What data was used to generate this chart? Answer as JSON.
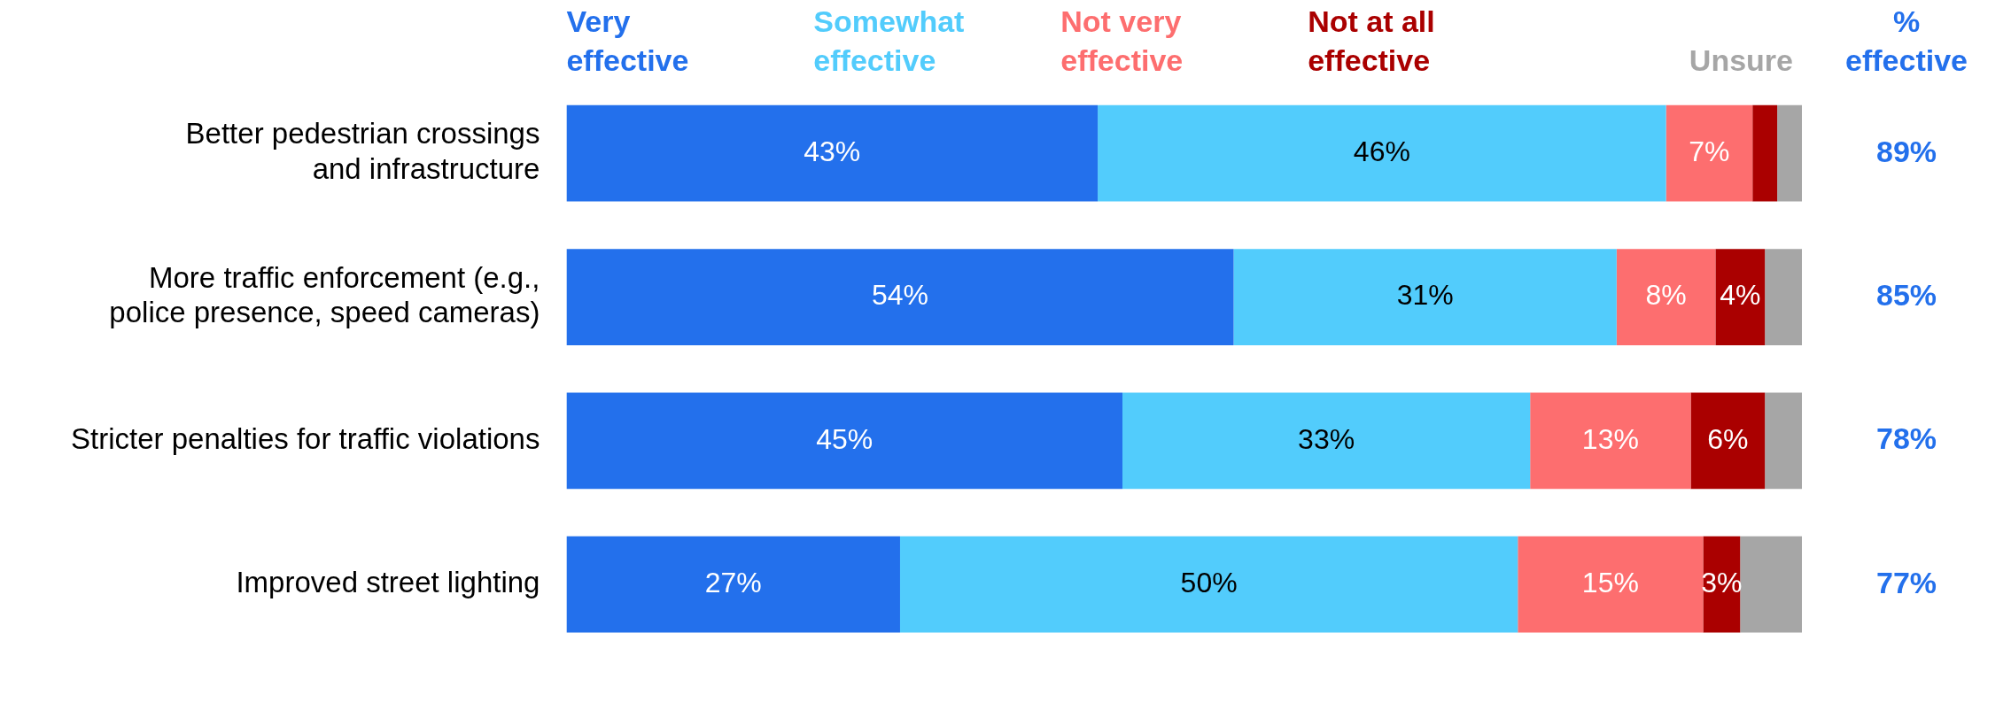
{
  "chart_data": {
    "type": "bar",
    "orientation": "horizontal",
    "stacked": true,
    "categories": [
      "Better pedestrian crossings and infrastructure",
      "More traffic enforcement (e.g., police presence, speed cameras)",
      "Stricter penalties for traffic violations",
      "Improved street lighting"
    ],
    "series": [
      {
        "name": "Very effective",
        "color": "#2370ec",
        "values": [
          43,
          54,
          45,
          27
        ],
        "value_labels": [
          "43%",
          "54%",
          "45%",
          "27%"
        ]
      },
      {
        "name": "Somewhat effective",
        "color": "#52ccfc",
        "values": [
          46,
          31,
          33,
          50
        ],
        "value_labels": [
          "46%",
          "31%",
          "33%",
          "50%"
        ]
      },
      {
        "name": "Not very effective",
        "color": "#fd6e6f",
        "values": [
          7,
          8,
          13,
          15
        ],
        "value_labels": [
          "7%",
          "8%",
          "13%",
          "15%"
        ]
      },
      {
        "name": "Not at all effective",
        "color": "#aa0000",
        "values": [
          2,
          4,
          6,
          3
        ],
        "value_labels": [
          null,
          "4%",
          "6%",
          "3%"
        ]
      },
      {
        "name": "Unsure",
        "color": "#a6a6a6",
        "values": [
          2,
          3,
          3,
          5
        ]
      }
    ],
    "xlim": [
      0,
      100
    ],
    "tick_labels": "y",
    "legend": "top",
    "annotations": [
      "% effective",
      "89%",
      "85%",
      "78%",
      "77%"
    ]
  }
}
